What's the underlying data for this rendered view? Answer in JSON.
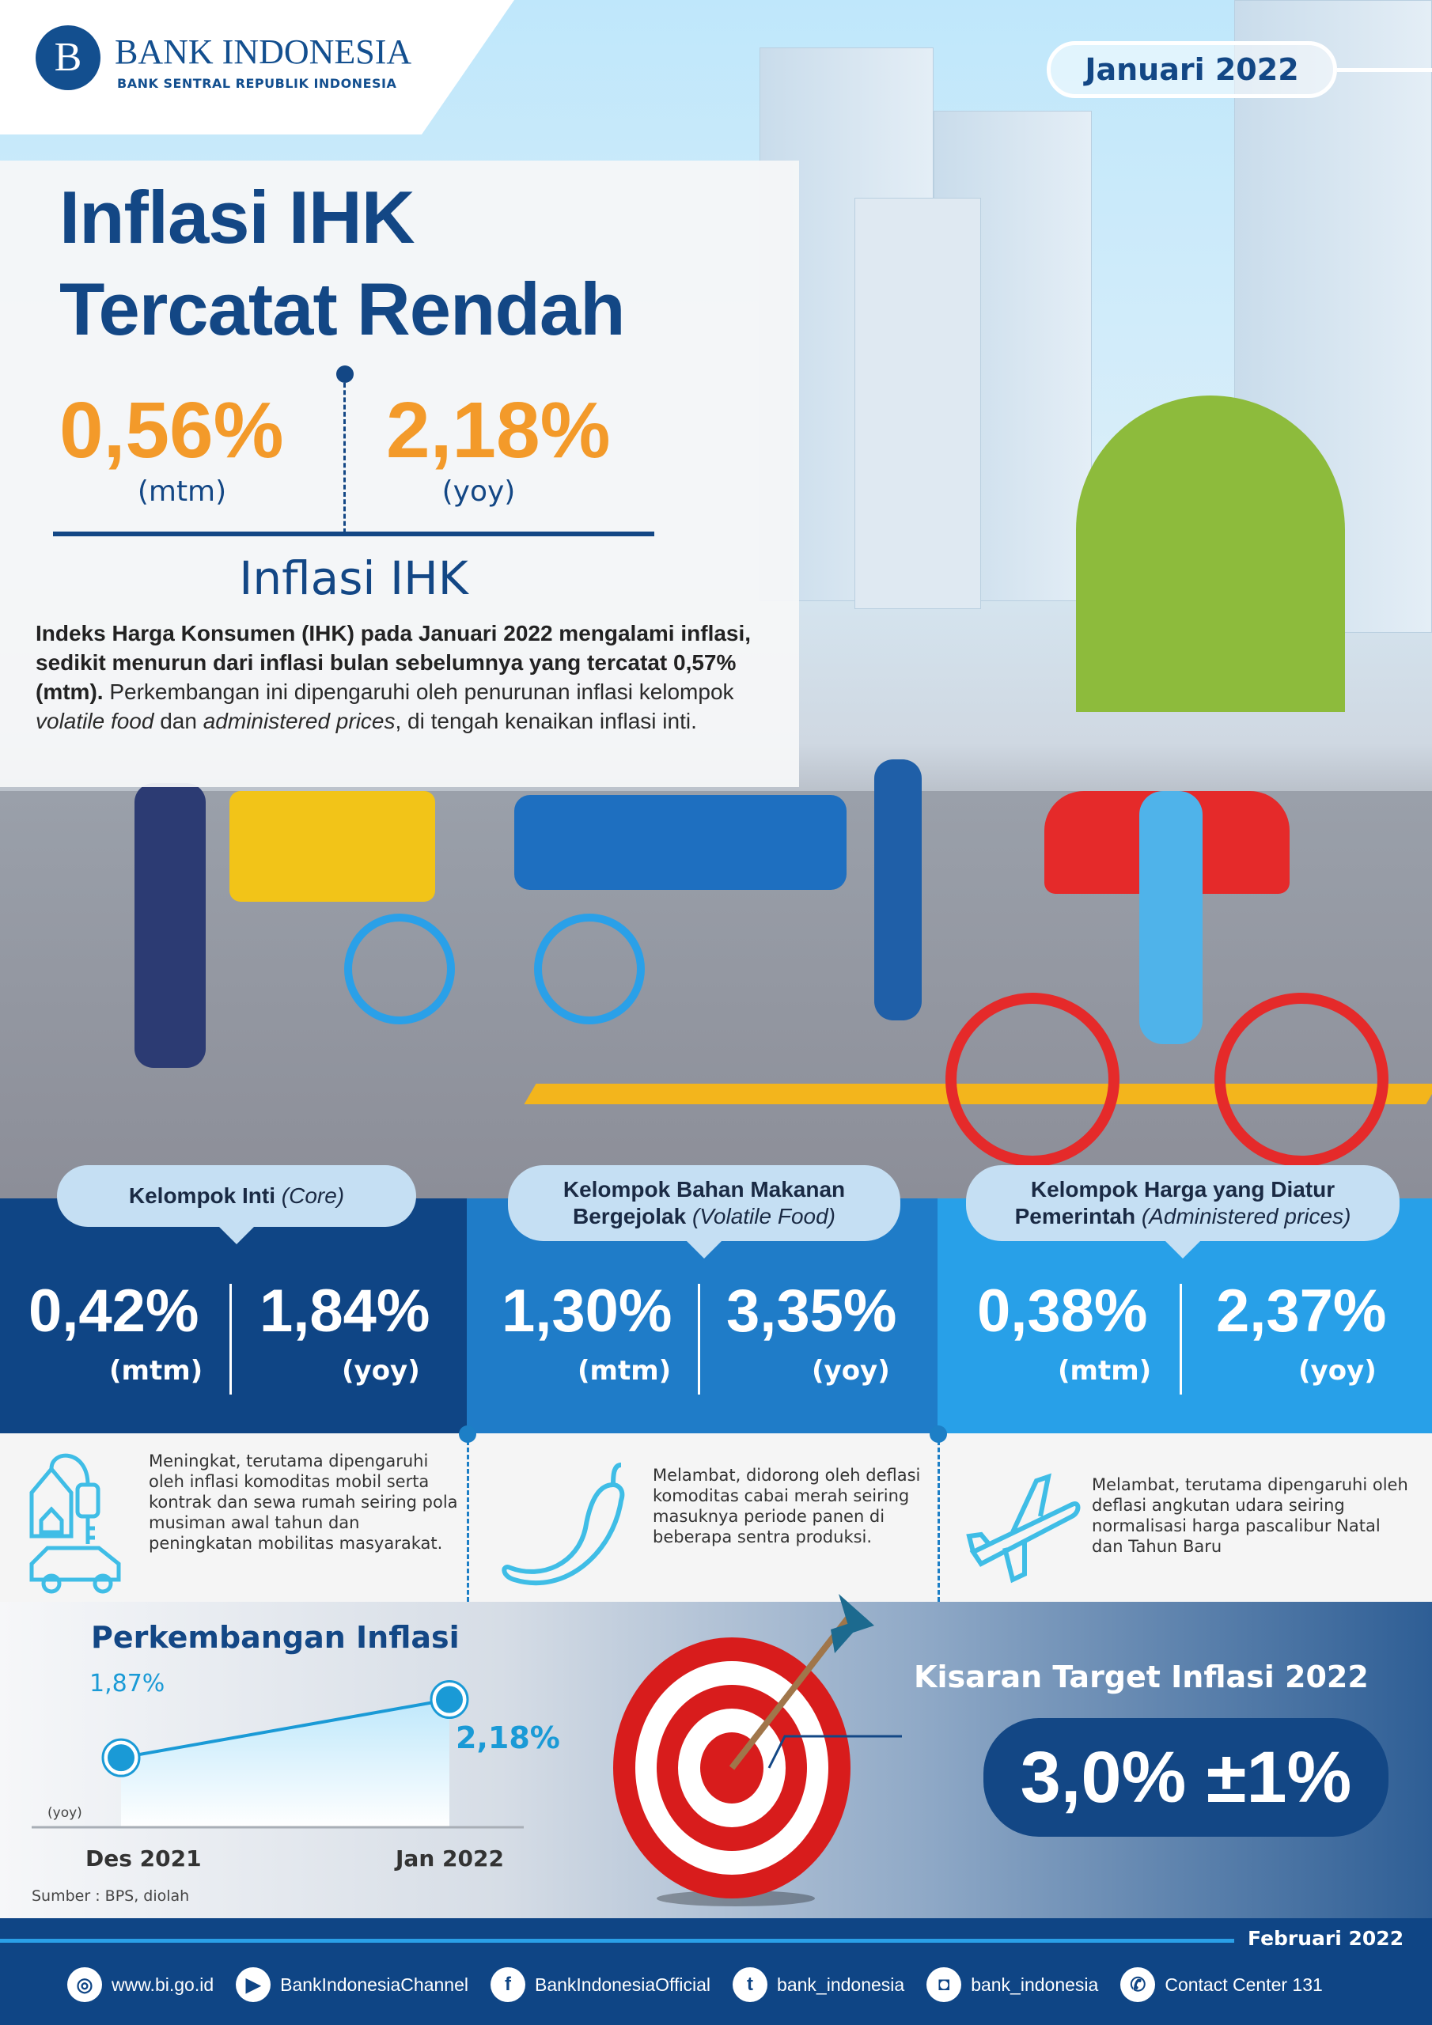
{
  "brand": {
    "name": "BANK INDONESIA",
    "tagline": "BANK SENTRAL REPUBLIK INDONESIA"
  },
  "period": "Januari 2022",
  "title": {
    "line1": "Inflasi IHK",
    "line2": "Tercatat Rendah"
  },
  "headline": {
    "mtm_value": "0,56%",
    "mtm_label": "(mtm)",
    "yoy_value": "2,18%",
    "yoy_label": "(yoy)",
    "caption": "Inflasi IHK"
  },
  "paragraph": {
    "bold": "Indeks Harga Konsumen (IHK) pada Januari 2022 mengalami inflasi, sedikit menurun dari inflasi bulan sebelumnya yang tercatat 0,57% (mtm).",
    "p1": " Perkembangan ini dipengaruhi oleh penurunan inflasi kelompok ",
    "i1": "volatile food",
    "p2": " dan ",
    "i2": "administered prices",
    "p3": ", di tengah kenaikan inflasi inti."
  },
  "groups": [
    {
      "title": "Kelompok Inti",
      "title_en": "(Core)",
      "mtm": "0,42%",
      "yoy": "1,84%",
      "mtm_label": "(mtm)",
      "yoy_label": "(yoy)",
      "color": "#0f4585",
      "icon": "house-key-car-icon",
      "desc": "Meningkat, terutama dipengaruhi oleh inflasi komoditas mobil serta kontrak dan sewa rumah seiring pola musiman awal tahun dan peningkatan mobilitas masyarakat."
    },
    {
      "title": "Kelompok Bahan Makanan Bergejolak",
      "title_en": "(Volatile Food)",
      "mtm": "1,30%",
      "yoy": "3,35%",
      "mtm_label": "(mtm)",
      "yoy_label": "(yoy)",
      "color": "#1f7cc8",
      "icon": "chili-icon",
      "desc": "Melambat, didorong oleh deflasi komoditas cabai merah seiring masuknya periode panen di beberapa sentra produksi."
    },
    {
      "title": "Kelompok Harga yang Diatur Pemerintah",
      "title_en": "(Administered prices)",
      "mtm": "0,38%",
      "yoy": "2,37%",
      "mtm_label": "(mtm)",
      "yoy_label": "(yoy)",
      "color": "#28a0e8",
      "icon": "airplane-icon",
      "desc": "Melambat,  terutama dipengaruhi oleh deflasi angkutan udara seiring normalisasi harga pascalibur Natal dan Tahun Baru"
    }
  ],
  "chart_data": {
    "type": "line",
    "title": "Perkembangan Inflasi",
    "categories": [
      "Des 2021",
      "Jan 2022"
    ],
    "values": [
      1.87,
      2.18
    ],
    "data_labels": [
      "1,87%",
      "2,18%"
    ],
    "ylabel": "(yoy)",
    "source": "Sumber : BPS, diolah",
    "color": "#1a9ad6"
  },
  "target": {
    "title": "Kisaran Target Inflasi 2022",
    "value": "3,0% ±1%"
  },
  "footer": {
    "date": "Februari 2022",
    "links": [
      {
        "icon": "globe-icon",
        "label": "www.bi.go.id"
      },
      {
        "icon": "play-icon",
        "label": "BankIndonesiaChannel"
      },
      {
        "icon": "facebook-icon",
        "label": "BankIndonesiaOfficial"
      },
      {
        "icon": "twitter-icon",
        "label": "bank_indonesia"
      },
      {
        "icon": "instagram-icon",
        "label": "bank_indonesia"
      },
      {
        "icon": "phone-icon",
        "label": "Contact Center 131"
      }
    ]
  }
}
